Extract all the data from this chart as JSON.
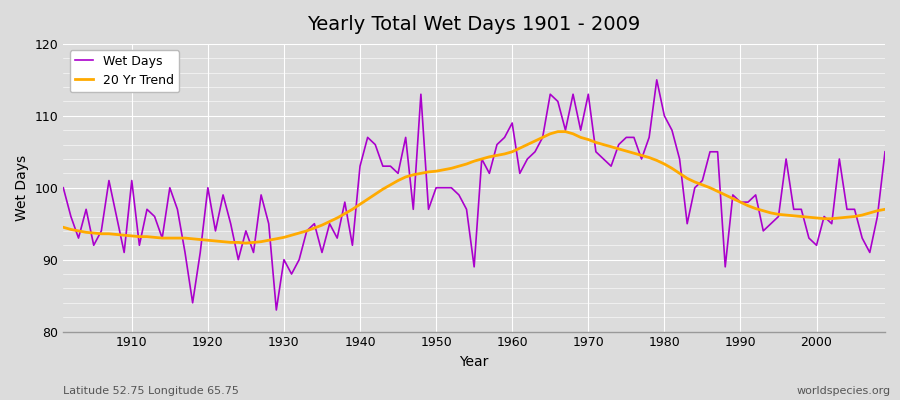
{
  "title": "Yearly Total Wet Days 1901 - 2009",
  "xlabel": "Year",
  "ylabel": "Wet Days",
  "lat_lon_label": "Latitude 52.75 Longitude 65.75",
  "source_label": "worldspecies.org",
  "ylim": [
    80,
    120
  ],
  "xlim": [
    1901,
    2009
  ],
  "fig_bg": "#dcdcdc",
  "ax_bg": "#dcdcdc",
  "wet_days_color": "#aa00cc",
  "trend_color": "#ffaa00",
  "wet_days_label": "Wet Days",
  "trend_label": "20 Yr Trend",
  "years": [
    1901,
    1902,
    1903,
    1904,
    1905,
    1906,
    1907,
    1908,
    1909,
    1910,
    1911,
    1912,
    1913,
    1914,
    1915,
    1916,
    1917,
    1918,
    1919,
    1920,
    1921,
    1922,
    1923,
    1924,
    1925,
    1926,
    1927,
    1928,
    1929,
    1930,
    1931,
    1932,
    1933,
    1934,
    1935,
    1936,
    1937,
    1938,
    1939,
    1940,
    1941,
    1942,
    1943,
    1944,
    1945,
    1946,
    1947,
    1948,
    1949,
    1950,
    1951,
    1952,
    1953,
    1954,
    1955,
    1956,
    1957,
    1958,
    1959,
    1960,
    1961,
    1962,
    1963,
    1964,
    1965,
    1966,
    1967,
    1968,
    1969,
    1970,
    1971,
    1972,
    1973,
    1974,
    1975,
    1976,
    1977,
    1978,
    1979,
    1980,
    1981,
    1982,
    1983,
    1984,
    1985,
    1986,
    1987,
    1988,
    1989,
    1990,
    1991,
    1992,
    1993,
    1994,
    1995,
    1996,
    1997,
    1998,
    1999,
    2000,
    2001,
    2002,
    2003,
    2004,
    2005,
    2006,
    2007,
    2008,
    2009
  ],
  "wet_days": [
    100,
    96,
    93,
    97,
    92,
    94,
    101,
    96,
    91,
    101,
    92,
    97,
    96,
    93,
    100,
    97,
    91,
    84,
    91,
    100,
    94,
    99,
    95,
    90,
    94,
    91,
    99,
    95,
    83,
    90,
    88,
    90,
    94,
    95,
    91,
    95,
    93,
    98,
    92,
    103,
    107,
    106,
    103,
    103,
    102,
    107,
    97,
    113,
    97,
    100,
    100,
    100,
    99,
    97,
    89,
    104,
    102,
    106,
    107,
    109,
    102,
    104,
    105,
    107,
    113,
    112,
    108,
    113,
    108,
    113,
    105,
    104,
    103,
    106,
    107,
    107,
    104,
    107,
    115,
    110,
    108,
    104,
    95,
    100,
    101,
    105,
    105,
    89,
    99,
    98,
    98,
    99,
    94,
    95,
    96,
    104,
    97,
    97,
    93,
    92,
    96,
    95,
    104,
    97,
    97,
    93,
    91,
    96,
    105
  ],
  "trend": [
    94.5,
    94.2,
    94.0,
    93.8,
    93.7,
    93.6,
    93.6,
    93.5,
    93.4,
    93.3,
    93.2,
    93.2,
    93.1,
    93.0,
    93.0,
    93.0,
    93.0,
    92.9,
    92.8,
    92.7,
    92.6,
    92.5,
    92.4,
    92.4,
    92.3,
    92.4,
    92.5,
    92.7,
    92.9,
    93.1,
    93.4,
    93.7,
    94.0,
    94.4,
    94.8,
    95.3,
    95.8,
    96.4,
    97.0,
    97.7,
    98.4,
    99.1,
    99.8,
    100.4,
    101.0,
    101.5,
    101.8,
    102.0,
    102.2,
    102.3,
    102.5,
    102.7,
    103.0,
    103.3,
    103.7,
    104.0,
    104.3,
    104.5,
    104.7,
    105.0,
    105.5,
    106.0,
    106.5,
    107.0,
    107.5,
    107.8,
    107.8,
    107.5,
    107.0,
    106.7,
    106.3,
    106.0,
    105.7,
    105.4,
    105.1,
    104.8,
    104.5,
    104.2,
    103.8,
    103.3,
    102.7,
    102.0,
    101.3,
    100.8,
    100.4,
    100.0,
    99.5,
    99.0,
    98.5,
    98.0,
    97.5,
    97.1,
    96.8,
    96.5,
    96.3,
    96.2,
    96.1,
    96.0,
    95.9,
    95.8,
    95.7,
    95.7,
    95.8,
    95.9,
    96.0,
    96.2,
    96.5,
    96.8,
    97.0
  ]
}
